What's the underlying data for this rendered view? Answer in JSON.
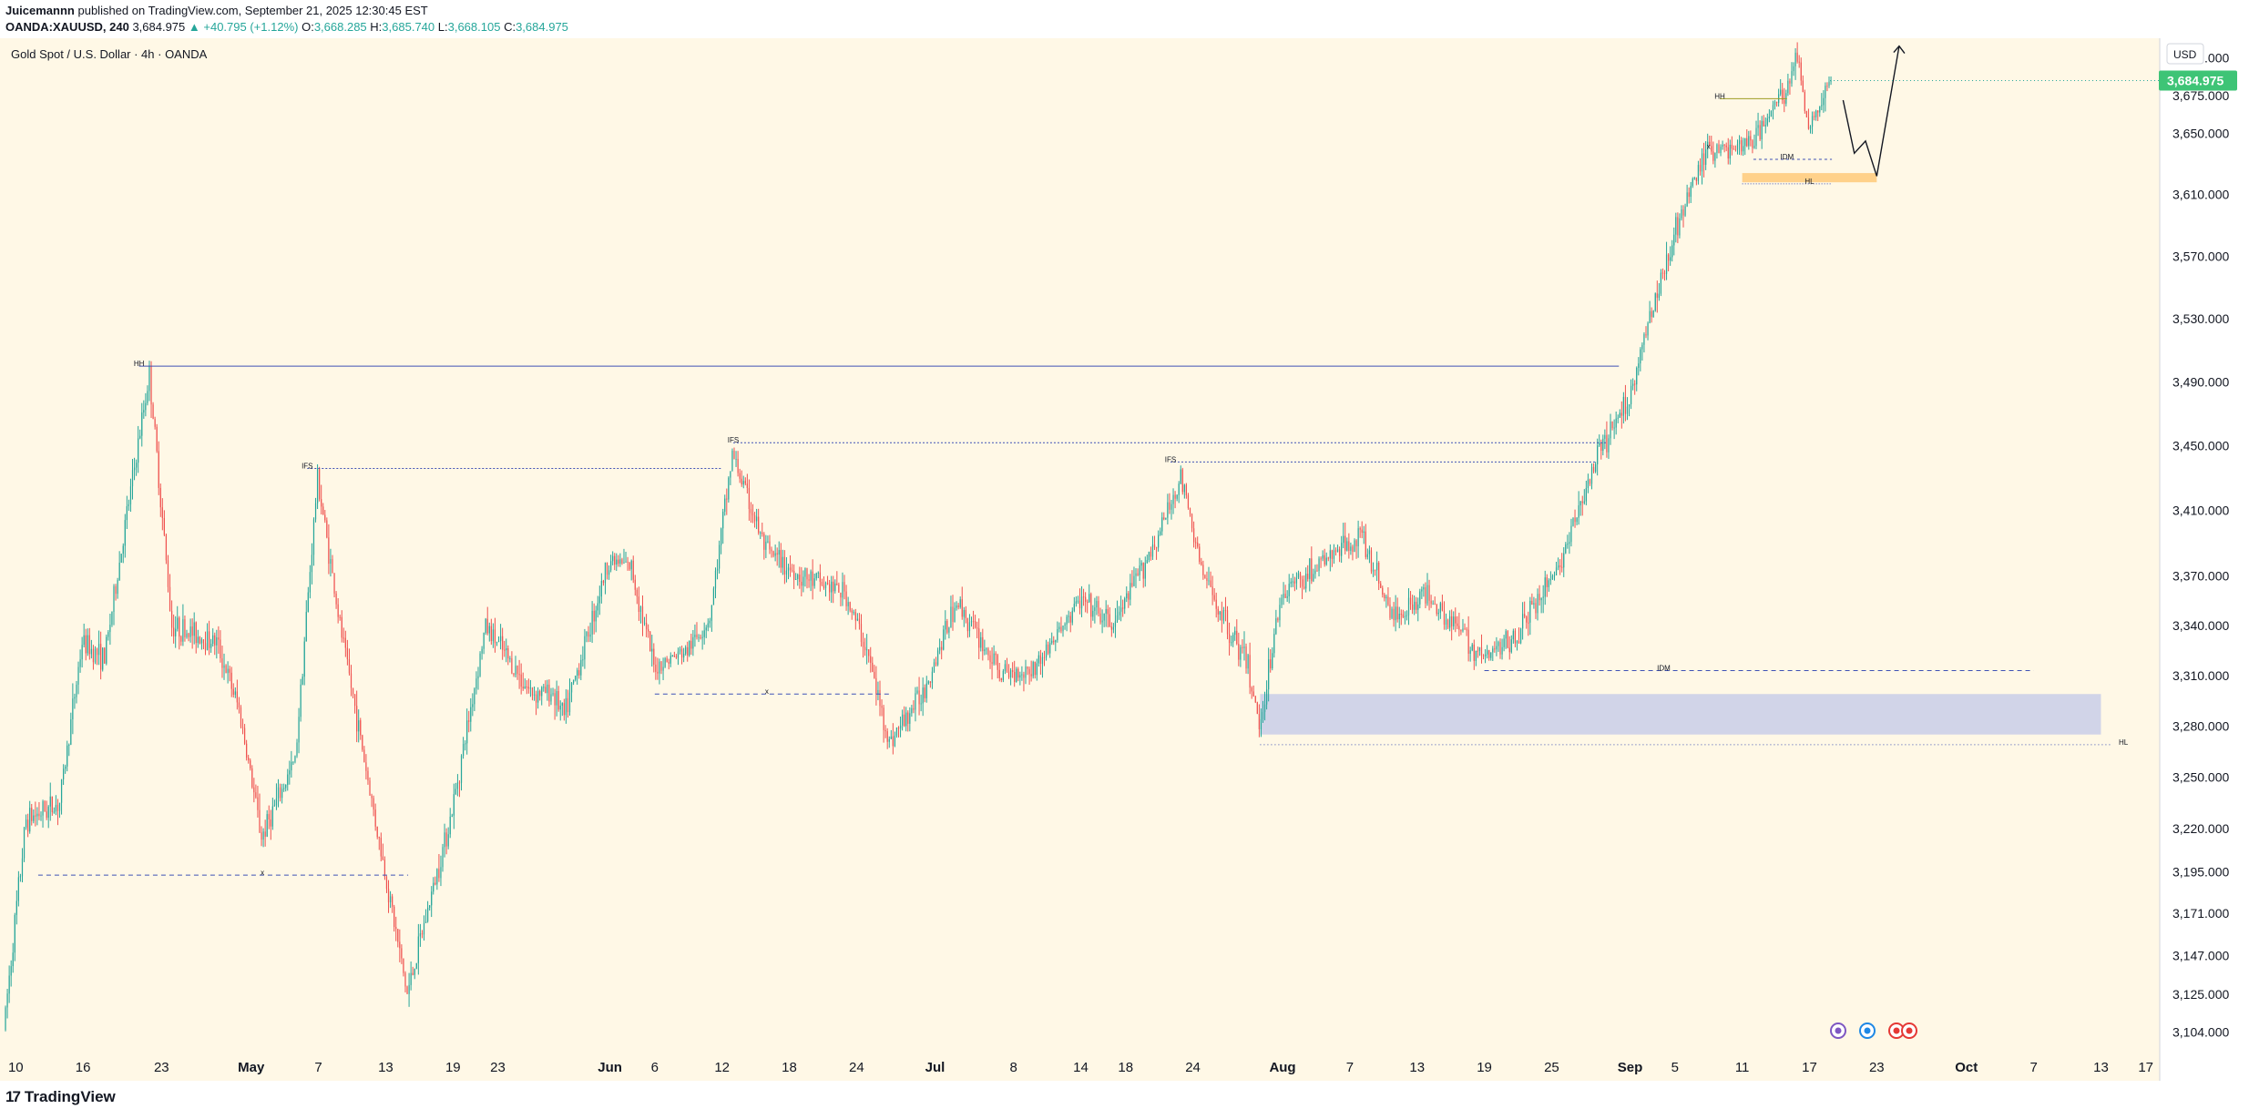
{
  "header": {
    "author": "Juicemannn",
    "published_text": "published on TradingView.com, September 21, 2025 12:30:45 EST",
    "symbol": "OANDA:XAUUSD, 240",
    "last": "3,684.975",
    "change": "▲ +40.795 (+1.12%)",
    "o_label": "O:",
    "o_value": "3,668.285",
    "h_label": "H:",
    "h_value": "3,685.740",
    "l_label": "L:",
    "l_value": "3,668.105",
    "c_label": "C:",
    "c_value": "3,684.975"
  },
  "chart_data": {
    "type": "candlestick",
    "title": "Gold Spot / U.S. Dollar · 4h · OANDA",
    "currency": "USD",
    "last_price": 3684.975,
    "last_price_label": "3,684.975",
    "y_scale": "log",
    "ylim": [
      3097,
      3712
    ],
    "y_ticks": [
      3104,
      3125,
      3147,
      3171,
      3195,
      3220,
      3250,
      3280,
      3310,
      3340,
      3370,
      3410,
      3450,
      3490,
      3530,
      3570,
      3610,
      3650,
      3675,
      3700
    ],
    "y_tick_labels": [
      "3,104.000",
      "3,125.000",
      "3,147.000",
      "3,171.000",
      "3,195.000",
      "3,220.000",
      "3,250.000",
      "3,280.000",
      "3,310.000",
      "3,340.000",
      "3,370.000",
      "3,410.000",
      "3,450.000",
      "3,490.000",
      "3,530.000",
      "3,570.000",
      "3,610.000",
      "3,650.000",
      "3,675.000",
      "3,700.000"
    ],
    "xlim": [
      "2025-04-09",
      "2025-10-18"
    ],
    "x_ticks": [
      {
        "date": "2025-04-10",
        "label": "10",
        "bold": false
      },
      {
        "date": "2025-04-16",
        "label": "16",
        "bold": false
      },
      {
        "date": "2025-04-23",
        "label": "23",
        "bold": false
      },
      {
        "date": "2025-05-01",
        "label": "May",
        "bold": true
      },
      {
        "date": "2025-05-07",
        "label": "7",
        "bold": false
      },
      {
        "date": "2025-05-13",
        "label": "13",
        "bold": false
      },
      {
        "date": "2025-05-19",
        "label": "19",
        "bold": false
      },
      {
        "date": "2025-05-23",
        "label": "23",
        "bold": false
      },
      {
        "date": "2025-06-02",
        "label": "Jun",
        "bold": true
      },
      {
        "date": "2025-06-06",
        "label": "6",
        "bold": false
      },
      {
        "date": "2025-06-12",
        "label": "12",
        "bold": false
      },
      {
        "date": "2025-06-18",
        "label": "18",
        "bold": false
      },
      {
        "date": "2025-06-24",
        "label": "24",
        "bold": false
      },
      {
        "date": "2025-07-01",
        "label": "Jul",
        "bold": true
      },
      {
        "date": "2025-07-08",
        "label": "8",
        "bold": false
      },
      {
        "date": "2025-07-14",
        "label": "14",
        "bold": false
      },
      {
        "date": "2025-07-18",
        "label": "18",
        "bold": false
      },
      {
        "date": "2025-07-24",
        "label": "24",
        "bold": false
      },
      {
        "date": "2025-08-01",
        "label": "Aug",
        "bold": true
      },
      {
        "date": "2025-08-07",
        "label": "7",
        "bold": false
      },
      {
        "date": "2025-08-13",
        "label": "13",
        "bold": false
      },
      {
        "date": "2025-08-19",
        "label": "19",
        "bold": false
      },
      {
        "date": "2025-08-25",
        "label": "25",
        "bold": false
      },
      {
        "date": "2025-09-01",
        "label": "Sep",
        "bold": true
      },
      {
        "date": "2025-09-05",
        "label": "5",
        "bold": false
      },
      {
        "date": "2025-09-11",
        "label": "11",
        "bold": false
      },
      {
        "date": "2025-09-17",
        "label": "17",
        "bold": false
      },
      {
        "date": "2025-09-23",
        "label": "23",
        "bold": false
      },
      {
        "date": "2025-10-01",
        "label": "Oct",
        "bold": true
      },
      {
        "date": "2025-10-07",
        "label": "7",
        "bold": false
      },
      {
        "date": "2025-10-13",
        "label": "13",
        "bold": false
      },
      {
        "date": "2025-10-17",
        "label": "17",
        "bold": false
      }
    ],
    "price_path": [
      [
        "2025-04-09",
        3105
      ],
      [
        "2025-04-11",
        3225
      ],
      [
        "2025-04-14",
        3235
      ],
      [
        "2025-04-16",
        3330
      ],
      [
        "2025-04-18",
        3320
      ],
      [
        "2025-04-22",
        3495
      ],
      [
        "2025-04-24",
        3340
      ],
      [
        "2025-04-28",
        3330
      ],
      [
        "2025-04-30",
        3290
      ],
      [
        "2025-05-02",
        3215
      ],
      [
        "2025-05-05",
        3260
      ],
      [
        "2025-05-07",
        3430
      ],
      [
        "2025-05-09",
        3340
      ],
      [
        "2025-05-12",
        3230
      ],
      [
        "2025-05-15",
        3125
      ],
      [
        "2025-05-19",
        3230
      ],
      [
        "2025-05-22",
        3340
      ],
      [
        "2025-05-26",
        3300
      ],
      [
        "2025-05-28",
        3300
      ],
      [
        "2025-05-29",
        3285
      ],
      [
        "2025-06-02",
        3380
      ],
      [
        "2025-06-04",
        3375
      ],
      [
        "2025-06-06",
        3315
      ],
      [
        "2025-06-09",
        3325
      ],
      [
        "2025-06-11",
        3345
      ],
      [
        "2025-06-13",
        3445
      ],
      [
        "2025-06-16",
        3385
      ],
      [
        "2025-06-19",
        3370
      ],
      [
        "2025-06-23",
        3360
      ],
      [
        "2025-06-25",
        3325
      ],
      [
        "2025-06-27",
        3270
      ],
      [
        "2025-06-30",
        3300
      ],
      [
        "2025-07-03",
        3355
      ],
      [
        "2025-07-07",
        3310
      ],
      [
        "2025-07-10",
        3315
      ],
      [
        "2025-07-14",
        3355
      ],
      [
        "2025-07-17",
        3340
      ],
      [
        "2025-07-21",
        3395
      ],
      [
        "2025-07-23",
        3430
      ],
      [
        "2025-07-25",
        3370
      ],
      [
        "2025-07-29",
        3315
      ],
      [
        "2025-07-30",
        3280
      ],
      [
        "2025-08-01",
        3360
      ],
      [
        "2025-08-05",
        3380
      ],
      [
        "2025-08-08",
        3395
      ],
      [
        "2025-08-11",
        3345
      ],
      [
        "2025-08-14",
        3360
      ],
      [
        "2025-08-19",
        3320
      ],
      [
        "2025-08-22",
        3335
      ],
      [
        "2025-08-26",
        3380
      ],
      [
        "2025-08-29",
        3440
      ],
      [
        "2025-09-01",
        3480
      ],
      [
        "2025-09-03",
        3535
      ],
      [
        "2025-09-05",
        3585
      ],
      [
        "2025-09-08",
        3640
      ],
      [
        "2025-09-10",
        3640
      ],
      [
        "2025-09-12",
        3645
      ],
      [
        "2025-09-15",
        3680
      ],
      [
        "2025-09-16",
        3700
      ],
      [
        "2025-09-17",
        3655
      ],
      [
        "2025-09-19",
        3684.975
      ]
    ],
    "annotations": {
      "labels": [
        {
          "text": "HH",
          "date": "2025-04-21",
          "price": 3500
        },
        {
          "text": "IFS",
          "date": "2025-05-06",
          "price": 3436
        },
        {
          "text": "IFS",
          "date": "2025-06-13",
          "price": 3452
        },
        {
          "text": "IFS",
          "date": "2025-07-22",
          "price": 3440
        },
        {
          "text": "x",
          "date": "2025-05-02",
          "price": 3193
        },
        {
          "text": "x",
          "date": "2025-06-16",
          "price": 3299
        },
        {
          "text": "HH",
          "date": "2025-09-09",
          "price": 3673
        },
        {
          "text": "x",
          "date": "2025-09-08",
          "price": 3640
        },
        {
          "text": "IDM",
          "date": "2025-09-15",
          "price": 3633
        },
        {
          "text": "HL",
          "date": "2025-09-17",
          "price": 3617
        },
        {
          "text": "IDM",
          "date": "2025-09-04",
          "price": 3313
        },
        {
          "text": "HL",
          "date": "2025-10-15",
          "price": 3269
        }
      ],
      "demand_zone": {
        "from": "2025-07-30",
        "to": "2025-10-13",
        "low": 3275,
        "high": 3299
      },
      "supply_zone_small": {
        "from": "2025-09-11",
        "to": "2025-09-23",
        "low": 3618,
        "high": 3624
      },
      "projection": [
        [
          "2025-09-20",
          3672
        ],
        [
          "2025-09-21",
          3637
        ],
        [
          "2025-09-22",
          3645
        ],
        [
          "2025-09-23",
          3622
        ],
        [
          "2025-09-25",
          3708
        ]
      ]
    }
  },
  "footer": {
    "brand": "TradingView"
  }
}
